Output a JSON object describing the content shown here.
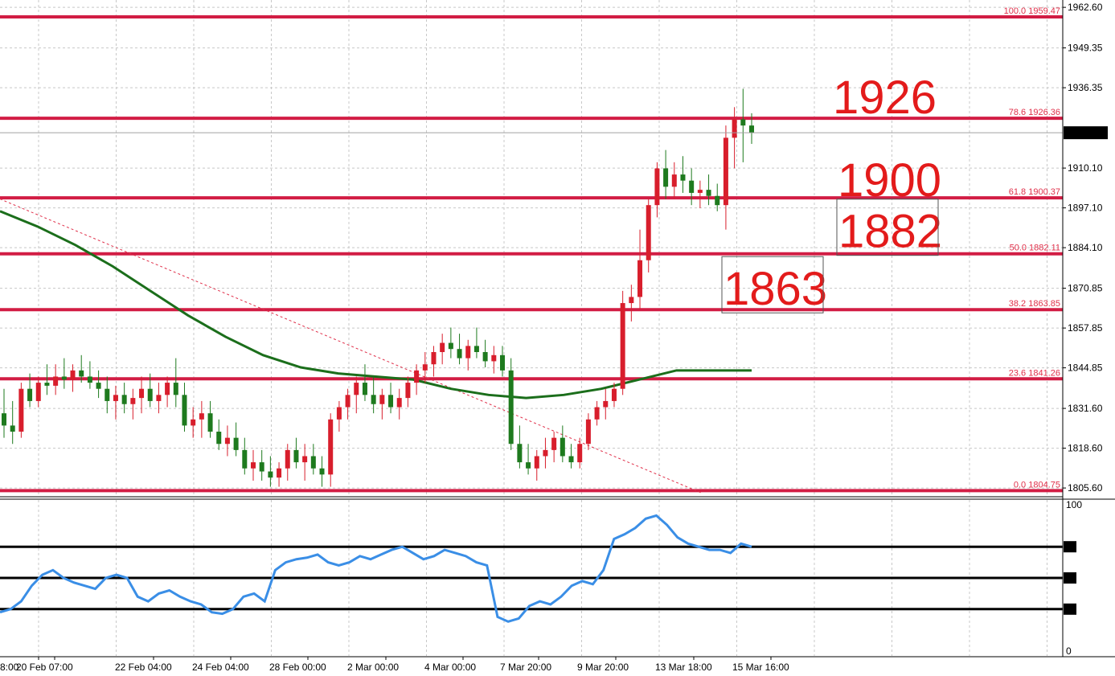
{
  "chart_data": {
    "type": "candlestick",
    "symbol": "",
    "colors": {
      "bull": "#d81e2c",
      "bear": "#1e7a1e",
      "ma": "#1b6e1b",
      "fib": "#d21d44",
      "trend": "#e0304a",
      "rsi": "#3a8ee6",
      "grid": "#c8c8c8",
      "current_bg": "#000000",
      "big_label": "#e31b1b"
    },
    "price_axis": {
      "ylim": [
        1803.0,
        1965.0
      ],
      "ticks": [
        "1962.60",
        "1949.35",
        "1936.35",
        "1910.10",
        "1897.10",
        "1884.10",
        "1870.85",
        "1857.85",
        "1844.85",
        "1831.60",
        "1818.60",
        "1805.60"
      ],
      "current_price": "1921.64"
    },
    "time_axis": {
      "labels": [
        "8:00",
        "20 Feb 07:00",
        "22 Feb 04:00",
        "24 Feb 04:00",
        "28 Feb 00:00",
        "2 Mar 00:00",
        "4 Mar 00:00",
        "7 Mar 20:00",
        "9 Mar 20:00",
        "13 Mar 18:00",
        "15 Mar 16:00"
      ]
    },
    "fib_levels": [
      {
        "pct": "100.0",
        "price": 1959.47,
        "label": "100.0 1959.47"
      },
      {
        "pct": "78.6",
        "price": 1926.36,
        "label": "78.6 1926.36"
      },
      {
        "pct": "61.8",
        "price": 1900.37,
        "label": "61.8 1900.37"
      },
      {
        "pct": "50.0",
        "price": 1882.11,
        "label": "50.0 1882.11"
      },
      {
        "pct": "38.2",
        "price": 1863.85,
        "label": "38.2 1863.85"
      },
      {
        "pct": "23.6",
        "price": 1841.26,
        "label": "23.6 1841.26"
      },
      {
        "pct": "0.0",
        "price": 1804.75,
        "label": "0.0 1804.75"
      }
    ],
    "annotations": [
      {
        "text": "1926",
        "price": 1926.36,
        "boxed": false
      },
      {
        "text": "1900",
        "price": 1900.37,
        "boxed": false
      },
      {
        "text": "1882",
        "price": 1882.11,
        "boxed": true
      },
      {
        "text": "1863",
        "price": 1863.85,
        "boxed": true
      }
    ],
    "candles": [
      [
        1830,
        1838,
        1822,
        1826
      ],
      [
        1826,
        1834,
        1820,
        1824
      ],
      [
        1824,
        1840,
        1822,
        1838
      ],
      [
        1838,
        1843,
        1832,
        1834
      ],
      [
        1834,
        1842,
        1832,
        1840
      ],
      [
        1840,
        1846,
        1836,
        1839
      ],
      [
        1839,
        1846,
        1836,
        1842
      ],
      [
        1842,
        1848,
        1838,
        1841
      ],
      [
        1841,
        1846,
        1837,
        1844
      ],
      [
        1844,
        1849,
        1840,
        1842
      ],
      [
        1842,
        1847,
        1838,
        1840
      ],
      [
        1840,
        1844,
        1835,
        1838
      ],
      [
        1838,
        1842,
        1830,
        1834
      ],
      [
        1834,
        1839,
        1828,
        1836
      ],
      [
        1836,
        1840,
        1830,
        1833
      ],
      [
        1833,
        1838,
        1828,
        1835
      ],
      [
        1835,
        1842,
        1830,
        1838
      ],
      [
        1838,
        1843,
        1832,
        1834
      ],
      [
        1834,
        1840,
        1830,
        1836
      ],
      [
        1836,
        1842,
        1832,
        1840
      ],
      [
        1840,
        1848,
        1832,
        1836
      ],
      [
        1836,
        1840,
        1824,
        1826
      ],
      [
        1826,
        1832,
        1822,
        1828
      ],
      [
        1828,
        1834,
        1822,
        1830
      ],
      [
        1830,
        1834,
        1822,
        1824
      ],
      [
        1824,
        1828,
        1818,
        1820
      ],
      [
        1820,
        1826,
        1816,
        1822
      ],
      [
        1822,
        1827,
        1816,
        1818
      ],
      [
        1818,
        1822,
        1810,
        1812
      ],
      [
        1812,
        1818,
        1808,
        1814
      ],
      [
        1814,
        1818,
        1808,
        1811
      ],
      [
        1811,
        1816,
        1806,
        1809
      ],
      [
        1809,
        1814,
        1806,
        1812
      ],
      [
        1812,
        1820,
        1808,
        1818
      ],
      [
        1818,
        1822,
        1812,
        1814
      ],
      [
        1814,
        1820,
        1808,
        1816
      ],
      [
        1816,
        1820,
        1810,
        1812
      ],
      [
        1812,
        1816,
        1806,
        1810
      ],
      [
        1810,
        1830,
        1806,
        1828
      ],
      [
        1828,
        1834,
        1824,
        1832
      ],
      [
        1832,
        1838,
        1828,
        1836
      ],
      [
        1836,
        1842,
        1830,
        1840
      ],
      [
        1840,
        1846,
        1834,
        1836
      ],
      [
        1836,
        1842,
        1830,
        1833
      ],
      [
        1833,
        1838,
        1828,
        1836
      ],
      [
        1836,
        1840,
        1830,
        1832
      ],
      [
        1832,
        1838,
        1828,
        1835
      ],
      [
        1835,
        1842,
        1832,
        1840
      ],
      [
        1840,
        1846,
        1836,
        1844
      ],
      [
        1844,
        1850,
        1840,
        1846
      ],
      [
        1846,
        1852,
        1842,
        1850
      ],
      [
        1850,
        1856,
        1846,
        1853
      ],
      [
        1853,
        1858,
        1848,
        1851
      ],
      [
        1851,
        1856,
        1846,
        1848
      ],
      [
        1848,
        1854,
        1844,
        1852
      ],
      [
        1852,
        1858,
        1848,
        1850
      ],
      [
        1850,
        1854,
        1845,
        1847
      ],
      [
        1847,
        1852,
        1843,
        1849
      ],
      [
        1849,
        1852,
        1842,
        1844
      ],
      [
        1844,
        1848,
        1818,
        1820
      ],
      [
        1820,
        1826,
        1812,
        1814
      ],
      [
        1814,
        1820,
        1810,
        1812
      ],
      [
        1812,
        1818,
        1808,
        1816
      ],
      [
        1816,
        1822,
        1812,
        1818
      ],
      [
        1818,
        1824,
        1814,
        1822
      ],
      [
        1822,
        1826,
        1814,
        1816
      ],
      [
        1816,
        1820,
        1812,
        1814
      ],
      [
        1814,
        1822,
        1812,
        1820
      ],
      [
        1820,
        1830,
        1818,
        1828
      ],
      [
        1828,
        1834,
        1826,
        1832
      ],
      [
        1832,
        1838,
        1828,
        1834
      ],
      [
        1834,
        1840,
        1832,
        1838
      ],
      [
        1838,
        1870,
        1836,
        1866
      ],
      [
        1866,
        1872,
        1860,
        1868
      ],
      [
        1868,
        1890,
        1864,
        1880
      ],
      [
        1880,
        1900,
        1876,
        1898
      ],
      [
        1898,
        1912,
        1894,
        1910
      ],
      [
        1910,
        1916,
        1900,
        1904
      ],
      [
        1904,
        1912,
        1900,
        1908
      ],
      [
        1908,
        1914,
        1902,
        1906
      ],
      [
        1906,
        1910,
        1898,
        1902
      ],
      [
        1902,
        1906,
        1897,
        1903
      ],
      [
        1903,
        1908,
        1898,
        1901
      ],
      [
        1901,
        1905,
        1896,
        1898
      ],
      [
        1898,
        1924,
        1890,
        1920
      ],
      [
        1920,
        1930,
        1910,
        1926
      ],
      [
        1926,
        1936,
        1912,
        1924
      ],
      [
        1924,
        1928,
        1918,
        1921.64
      ]
    ],
    "ma_curve": [
      [
        0,
        1896
      ],
      [
        0.05,
        1891
      ],
      [
        0.1,
        1885
      ],
      [
        0.15,
        1878
      ],
      [
        0.2,
        1870
      ],
      [
        0.25,
        1862
      ],
      [
        0.3,
        1855
      ],
      [
        0.35,
        1849
      ],
      [
        0.4,
        1845
      ],
      [
        0.45,
        1843
      ],
      [
        0.5,
        1842
      ],
      [
        0.55,
        1841
      ],
      [
        0.6,
        1838
      ],
      [
        0.65,
        1836
      ],
      [
        0.7,
        1835
      ],
      [
        0.75,
        1836
      ],
      [
        0.8,
        1838
      ],
      [
        0.85,
        1841
      ],
      [
        0.9,
        1844
      ],
      [
        1.0,
        1844
      ]
    ],
    "trendline": {
      "from": [
        0,
        1900
      ],
      "to": [
        0.66,
        1804
      ]
    },
    "rsi": {
      "ylim": [
        0,
        100
      ],
      "ticks": [
        "100",
        "70",
        "50",
        "30",
        "0"
      ],
      "levels": [
        70,
        50,
        30
      ],
      "values": [
        28,
        30,
        35,
        45,
        52,
        55,
        50,
        47,
        45,
        43,
        50,
        52,
        50,
        38,
        35,
        40,
        42,
        38,
        35,
        33,
        28,
        27,
        30,
        38,
        40,
        35,
        55,
        60,
        62,
        63,
        65,
        60,
        58,
        60,
        64,
        62,
        65,
        68,
        70,
        66,
        62,
        64,
        68,
        66,
        64,
        60,
        58,
        25,
        22,
        24,
        32,
        35,
        33,
        38,
        45,
        48,
        46,
        55,
        75,
        78,
        82,
        88,
        90,
        84,
        76,
        72,
        70,
        68,
        68,
        66,
        72,
        70
      ]
    }
  }
}
